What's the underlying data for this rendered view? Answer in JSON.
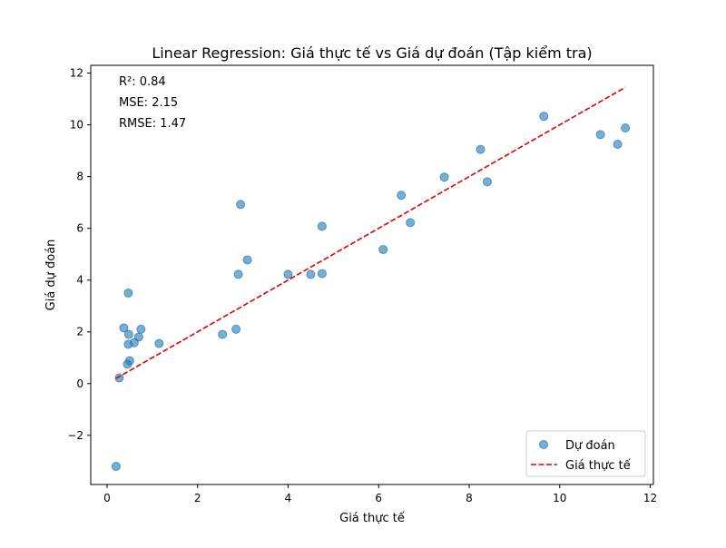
{
  "chart_data": {
    "type": "scatter",
    "title": "Linear Regression: Giá thực tế vs Giá dự đoán (Tập kiểm tra)",
    "xlabel": "Giá thực tế",
    "ylabel": "Giá dự đoán",
    "xlim": [
      -0.36,
      12.07
    ],
    "ylim": [
      -3.9,
      12.3
    ],
    "xticks": [
      0,
      2,
      4,
      6,
      8,
      10,
      12
    ],
    "xtick_labels": [
      "0",
      "2",
      "4",
      "6",
      "8",
      "10",
      "12"
    ],
    "yticks": [
      -2,
      0,
      2,
      4,
      6,
      8,
      10,
      12
    ],
    "ytick_labels": [
      "−2",
      "0",
      "2",
      "4",
      "6",
      "8",
      "10",
      "12"
    ],
    "grid": false,
    "legend_position": "lower-right",
    "annotations": [
      "R²: 0.84",
      "MSE: 2.15",
      "RMSE: 1.47"
    ],
    "series": [
      {
        "name": "Dự đoán",
        "kind": "scatter",
        "color": "#1f77b4",
        "points": [
          [
            0.2,
            -3.2
          ],
          [
            0.27,
            0.22
          ],
          [
            0.37,
            2.15
          ],
          [
            0.45,
            0.75
          ],
          [
            0.47,
            3.5
          ],
          [
            0.47,
            1.52
          ],
          [
            0.48,
            1.9
          ],
          [
            0.5,
            0.88
          ],
          [
            0.6,
            1.58
          ],
          [
            0.7,
            1.8
          ],
          [
            0.75,
            2.1
          ],
          [
            1.15,
            1.55
          ],
          [
            2.55,
            1.9
          ],
          [
            2.85,
            2.1
          ],
          [
            2.9,
            4.22
          ],
          [
            2.95,
            6.92
          ],
          [
            3.1,
            4.78
          ],
          [
            4.0,
            4.22
          ],
          [
            4.5,
            4.22
          ],
          [
            4.75,
            4.25
          ],
          [
            4.75,
            6.08
          ],
          [
            6.1,
            5.18
          ],
          [
            6.5,
            7.28
          ],
          [
            6.7,
            6.22
          ],
          [
            7.45,
            7.98
          ],
          [
            8.25,
            9.05
          ],
          [
            8.4,
            7.8
          ],
          [
            9.65,
            10.33
          ],
          [
            10.9,
            9.62
          ],
          [
            11.28,
            9.25
          ],
          [
            11.45,
            9.88
          ]
        ]
      },
      {
        "name": "Giá thực tế",
        "kind": "line",
        "style": "dashed",
        "color": "#e00000",
        "points": [
          [
            0.2,
            0.2
          ],
          [
            11.45,
            11.45
          ]
        ]
      }
    ]
  }
}
